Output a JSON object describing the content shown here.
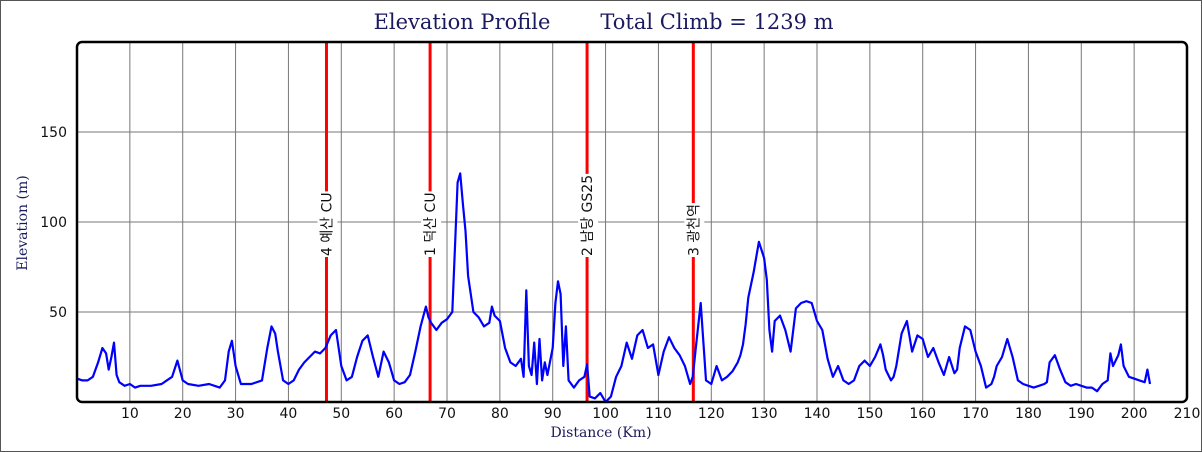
{
  "chart_data": {
    "type": "line",
    "title": "Elevation Profile",
    "subtitle": "Total Climb = 1239 m",
    "xlabel": "Distance (Km)",
    "ylabel": "Elevation (m)",
    "xlim": [
      0,
      210
    ],
    "ylim": [
      0,
      200
    ],
    "xticks": [
      10,
      20,
      30,
      40,
      50,
      60,
      70,
      80,
      90,
      100,
      110,
      120,
      130,
      140,
      150,
      160,
      170,
      180,
      190,
      200,
      210
    ],
    "yticks": [
      50,
      100,
      150
    ],
    "grid": true,
    "series": [
      {
        "color": "#0000ff",
        "x": [
          0,
          1,
          2,
          3,
          4,
          4.8,
          5.5,
          6,
          6.5,
          7,
          7.5,
          8,
          9,
          10,
          11,
          12,
          14,
          16,
          18,
          19,
          20,
          21,
          23,
          25,
          27,
          28,
          28.7,
          29.3,
          30,
          31,
          33,
          35,
          36,
          36.8,
          37.5,
          38,
          39,
          40,
          41,
          42,
          43,
          44,
          45,
          46,
          47,
          48,
          49,
          50,
          51,
          52,
          53,
          54,
          55,
          56,
          57,
          58,
          59,
          60,
          61,
          62,
          63,
          64,
          65,
          66,
          66.5,
          67,
          68,
          69,
          70,
          71,
          71.5,
          72,
          72.5,
          73,
          73.5,
          74,
          75,
          76,
          77,
          78,
          78.5,
          79,
          80,
          81,
          82,
          83,
          84,
          84.5,
          85,
          85.5,
          86,
          86.5,
          87,
          87.5,
          88,
          88.5,
          89,
          90,
          90.5,
          91,
          91.5,
          92,
          92.5,
          93,
          94,
          95,
          96,
          96.5,
          97,
          98,
          99,
          100,
          101,
          102,
          103,
          104,
          105,
          106,
          107,
          108,
          109,
          110,
          111,
          112,
          113,
          114,
          115,
          116,
          116.5,
          117,
          118,
          119,
          120,
          121,
          122,
          123,
          124,
          125,
          125.5,
          126,
          126.5,
          127,
          128,
          129,
          130,
          130.5,
          131,
          131.5,
          132,
          133,
          134,
          135,
          136,
          137,
          138,
          139,
          140,
          141,
          142,
          143,
          144,
          145,
          146,
          147,
          148,
          149,
          150,
          151,
          152,
          152.5,
          153,
          154,
          154.5,
          155,
          156,
          157,
          158,
          159,
          160,
          161,
          162,
          163,
          164,
          165,
          166,
          166.5,
          167,
          168,
          169,
          170,
          171,
          172,
          173,
          173.5,
          174,
          175,
          176,
          177,
          178,
          179,
          180,
          181,
          182,
          183,
          183.5,
          184,
          185,
          186,
          187,
          188,
          189,
          190,
          191,
          192,
          193,
          194,
          195,
          195.5,
          196,
          197,
          197.5,
          198,
          199,
          200,
          201,
          202,
          202.5,
          203
        ],
        "y": [
          13,
          12,
          12,
          14,
          22,
          30,
          27,
          18,
          25,
          33,
          15,
          11,
          9,
          10,
          8,
          9,
          9,
          10,
          14,
          23,
          12,
          10,
          9,
          10,
          8,
          12,
          28,
          34,
          20,
          10,
          10,
          12,
          30,
          42,
          38,
          28,
          12,
          10,
          12,
          18,
          22,
          25,
          28,
          27,
          30,
          37,
          40,
          20,
          12,
          14,
          25,
          34,
          37,
          25,
          14,
          28,
          22,
          12,
          10,
          11,
          15,
          28,
          42,
          53,
          47,
          44,
          40,
          44,
          46,
          50,
          85,
          122,
          127,
          110,
          95,
          70,
          50,
          47,
          42,
          44,
          53,
          48,
          45,
          30,
          22,
          20,
          24,
          14,
          62,
          20,
          15,
          33,
          10,
          35,
          12,
          22,
          15,
          30,
          55,
          67,
          60,
          20,
          42,
          12,
          8,
          12,
          14,
          21,
          3,
          2,
          5,
          0,
          3,
          14,
          20,
          33,
          24,
          37,
          40,
          30,
          32,
          15,
          28,
          36,
          30,
          26,
          20,
          10,
          14,
          28,
          55,
          12,
          10,
          20,
          12,
          14,
          17,
          22,
          26,
          32,
          43,
          58,
          72,
          89,
          80,
          68,
          40,
          28,
          45,
          48,
          40,
          28,
          52,
          55,
          56,
          55,
          45,
          40,
          24,
          14,
          20,
          12,
          10,
          12,
          20,
          23,
          20,
          25,
          32,
          26,
          18,
          12,
          14,
          20,
          38,
          45,
          28,
          37,
          35,
          25,
          30,
          22,
          15,
          25,
          16,
          18,
          30,
          42,
          40,
          28,
          20,
          8,
          10,
          14,
          20,
          25,
          35,
          25,
          12,
          10,
          9,
          8,
          9,
          10,
          11,
          22,
          26,
          18,
          11,
          9,
          10,
          9,
          8,
          8,
          6,
          10,
          12,
          27,
          20,
          26,
          32,
          20,
          14,
          13,
          12,
          11,
          18,
          10
        ]
      }
    ],
    "markers": [
      {
        "x": 47.2,
        "label": "4 예산 CU",
        "color": "#ff0000"
      },
      {
        "x": 66.8,
        "label": "1 덕산 CU",
        "color": "#ff0000"
      },
      {
        "x": 96.5,
        "label": "2 남당 GS25",
        "color": "#ff0000"
      },
      {
        "x": 116.6,
        "label": "3 광천역",
        "color": "#ff0000"
      }
    ]
  }
}
